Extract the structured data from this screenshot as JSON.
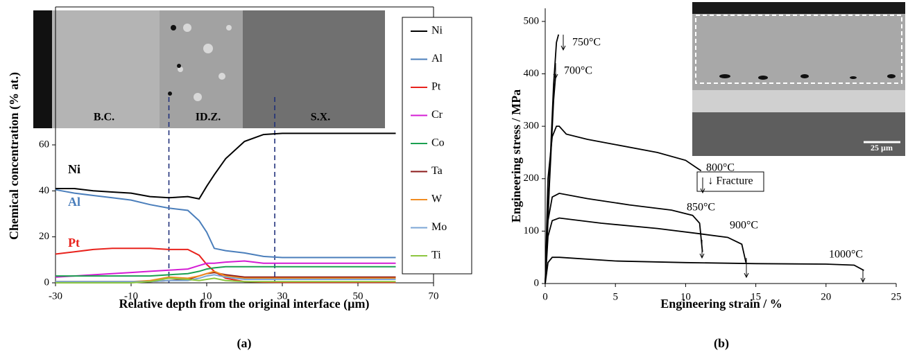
{
  "chart_data": [
    {
      "type": "line",
      "caption": "(a)",
      "xlabel": "Relative depth from the original interface (µm)",
      "ylabel": "Chemical concentration  (% at.)",
      "inset_labels": [
        "B.C.",
        "ID.Z.",
        "S.X."
      ],
      "vlines": [
        0,
        28
      ],
      "x": [
        -30,
        -25,
        -20,
        -15,
        -10,
        -5,
        0,
        5,
        8,
        10,
        12,
        15,
        20,
        25,
        30,
        40,
        50,
        60
      ],
      "series": [
        {
          "name": "Ni",
          "color": "#000000",
          "values": [
            41,
            41,
            40,
            39.5,
            39,
            37.5,
            37,
            37.5,
            36.5,
            42,
            47,
            54,
            61.5,
            64.5,
            65,
            65,
            65,
            65
          ]
        },
        {
          "name": "Al",
          "color": "#4a7ebb",
          "values": [
            40.5,
            39,
            38,
            37,
            36,
            34,
            32.5,
            31.5,
            27,
            22,
            15,
            14,
            13,
            11.5,
            11,
            11,
            11,
            11
          ]
        },
        {
          "name": "Pt",
          "color": "#e8221c",
          "values": [
            12.5,
            13.5,
            14.5,
            15,
            15,
            15,
            14.5,
            14.5,
            12,
            8,
            5,
            2,
            0.5,
            0.3,
            0.2,
            0.2,
            0.2,
            0.2
          ]
        },
        {
          "name": "Cr",
          "color": "#d41cd4",
          "values": [
            2.5,
            3,
            3.5,
            4,
            4.5,
            5,
            5.5,
            6,
            7.5,
            8.5,
            8.5,
            9,
            9.5,
            8.5,
            8.5,
            8.5,
            8.5,
            8.5
          ]
        },
        {
          "name": "Co",
          "color": "#1aa050",
          "values": [
            3,
            3,
            3,
            3,
            3,
            3,
            3.5,
            4,
            5,
            6,
            6.5,
            7,
            7,
            7,
            7,
            7,
            7,
            7
          ]
        },
        {
          "name": "Ta",
          "color": "#8b1a1a",
          "values": [
            0.5,
            0.5,
            0.5,
            0.5,
            0.5,
            0.5,
            1,
            1.5,
            3,
            4,
            4.5,
            3.5,
            2.5,
            2.5,
            2.5,
            2.5,
            2.5,
            2.5
          ]
        },
        {
          "name": "W",
          "color": "#f08c20",
          "values": [
            0.5,
            0.5,
            0.5,
            0.5,
            0.5,
            1,
            2.5,
            2,
            3,
            4,
            5,
            3,
            2,
            2,
            2,
            2,
            2,
            2
          ]
        },
        {
          "name": "Mo",
          "color": "#7ba6d6",
          "values": [
            0.5,
            0.5,
            0.5,
            0.5,
            0.5,
            0.5,
            1,
            1,
            2,
            3,
            3.5,
            2.5,
            1.5,
            1.5,
            1.5,
            1.5,
            1.5,
            1.5
          ]
        },
        {
          "name": "Ti",
          "color": "#8cc63e",
          "values": [
            0,
            0,
            0,
            0,
            0,
            0.5,
            2,
            1.5,
            1,
            1.5,
            2,
            1,
            0.5,
            0.5,
            0.5,
            0.5,
            0.5,
            0.5
          ]
        }
      ],
      "xlim": [
        -30,
        70
      ],
      "xticks": [
        -30,
        -10,
        10,
        30,
        50,
        70
      ],
      "ylim": [
        0,
        120
      ],
      "yticks": [
        0,
        20,
        40,
        60
      ],
      "legend": "right"
    },
    {
      "type": "line",
      "caption": "(b)",
      "xlabel": "Engineering strain / %",
      "ylabel": "Engineering stress  / MPa",
      "scale_bar": "25 µm",
      "legend_note": "↓ Fracture",
      "series": [
        {
          "name": "750°C",
          "color": "#000000",
          "x": [
            0,
            0.3,
            0.6,
            0.8,
            0.95
          ],
          "values": [
            0,
            200,
            380,
            460,
            475
          ]
        },
        {
          "name": "700°C",
          "color": "#000000",
          "x": [
            0,
            0.3,
            0.6,
            0.75
          ],
          "values": [
            0,
            190,
            350,
            400
          ]
        },
        {
          "name": "800°C",
          "color": "#000000",
          "x": [
            0,
            0.2,
            0.5,
            0.8,
            1,
            1.5,
            3,
            5,
            8,
            10,
            11.1
          ],
          "values": [
            0,
            200,
            280,
            300,
            300,
            285,
            275,
            265,
            250,
            235,
            215
          ]
        },
        {
          "name": "850°C",
          "color": "#000000",
          "x": [
            0,
            0.2,
            0.5,
            1,
            3,
            6,
            9,
            10.5,
            11,
            11.2
          ],
          "values": [
            0,
            120,
            165,
            172,
            162,
            150,
            140,
            130,
            115,
            60
          ]
        },
        {
          "name": "900°C",
          "color": "#000000",
          "x": [
            0,
            0.2,
            0.5,
            1,
            4,
            8,
            11,
            13,
            14,
            14.3
          ],
          "values": [
            0,
            90,
            120,
            125,
            115,
            105,
            95,
            88,
            75,
            40
          ]
        },
        {
          "name": "1000°C",
          "color": "#000000",
          "x": [
            0,
            0.2,
            0.5,
            1,
            5,
            10,
            15,
            20,
            22,
            22.7
          ],
          "values": [
            0,
            40,
            50,
            50,
            43,
            40,
            38,
            37,
            35,
            25
          ]
        }
      ],
      "xlim": [
        0,
        25
      ],
      "xticks": [
        0,
        5,
        10,
        15,
        20,
        25
      ],
      "ylim": [
        0,
        525
      ],
      "yticks": [
        0,
        100,
        200,
        300,
        400,
        500
      ]
    }
  ]
}
